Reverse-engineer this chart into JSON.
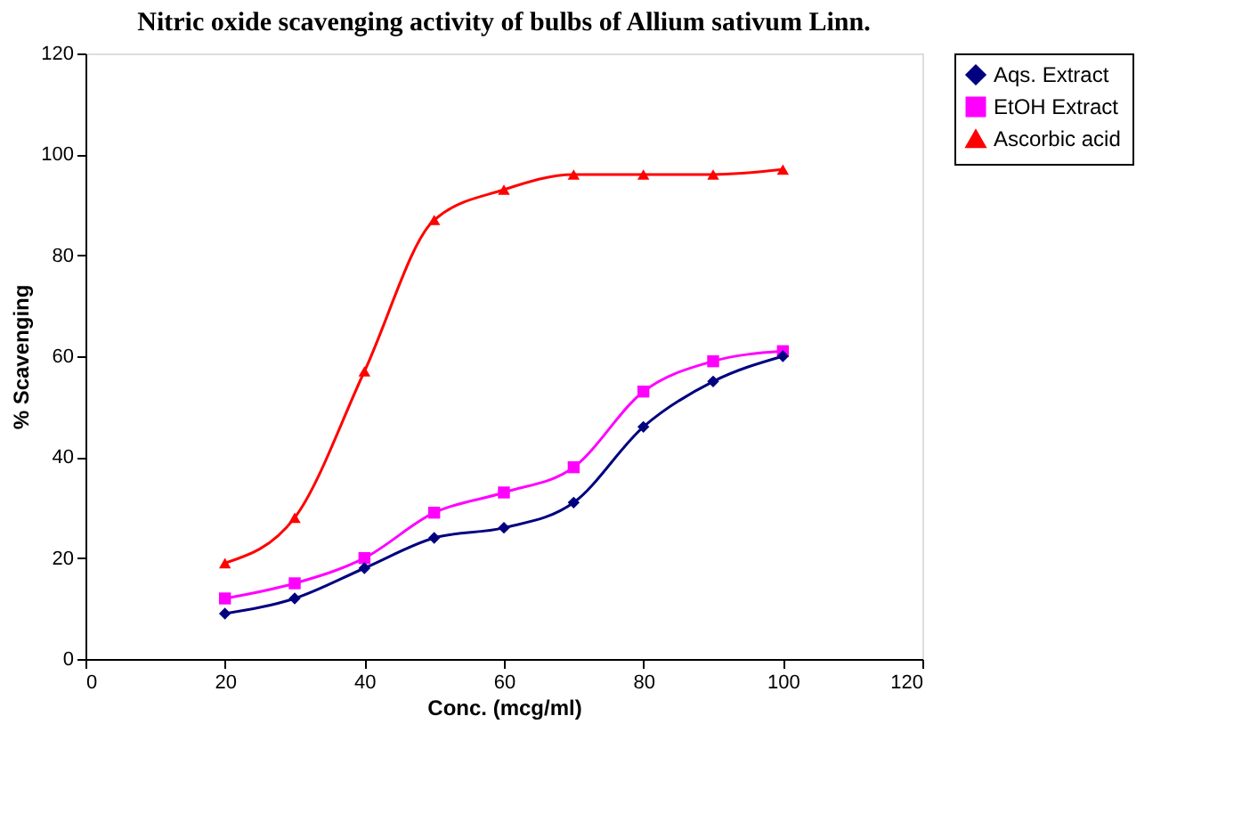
{
  "chart_data": {
    "type": "line",
    "title": "Nitric oxide scavenging activity of bulbs of Allium sativum Linn.",
    "xlabel": "Conc. (mcg/ml)",
    "ylabel": "% Scavenging",
    "x": [
      20,
      30,
      40,
      50,
      60,
      70,
      80,
      90,
      100
    ],
    "series": [
      {
        "name": "Aqs. Extract",
        "color": "#000080",
        "marker": "diamond",
        "values": [
          9,
          12,
          18,
          24,
          26,
          31,
          46,
          55,
          60
        ]
      },
      {
        "name": "EtOH Extract",
        "color": "#ff00ff",
        "marker": "square",
        "values": [
          12,
          15,
          20,
          29,
          33,
          38,
          53,
          59,
          61
        ]
      },
      {
        "name": "Ascorbic acid",
        "color": "#ff0000",
        "marker": "triangle",
        "values": [
          19,
          28,
          57,
          87,
          93,
          96,
          96,
          96,
          97
        ]
      }
    ],
    "xlim": [
      0,
      120
    ],
    "xticks": [
      0,
      20,
      40,
      60,
      80,
      100,
      120
    ],
    "ylim": [
      0,
      120
    ],
    "yticks": [
      0,
      20,
      40,
      60,
      80,
      100,
      120
    ],
    "grid": false,
    "legend": "right",
    "line_style": "solid"
  }
}
